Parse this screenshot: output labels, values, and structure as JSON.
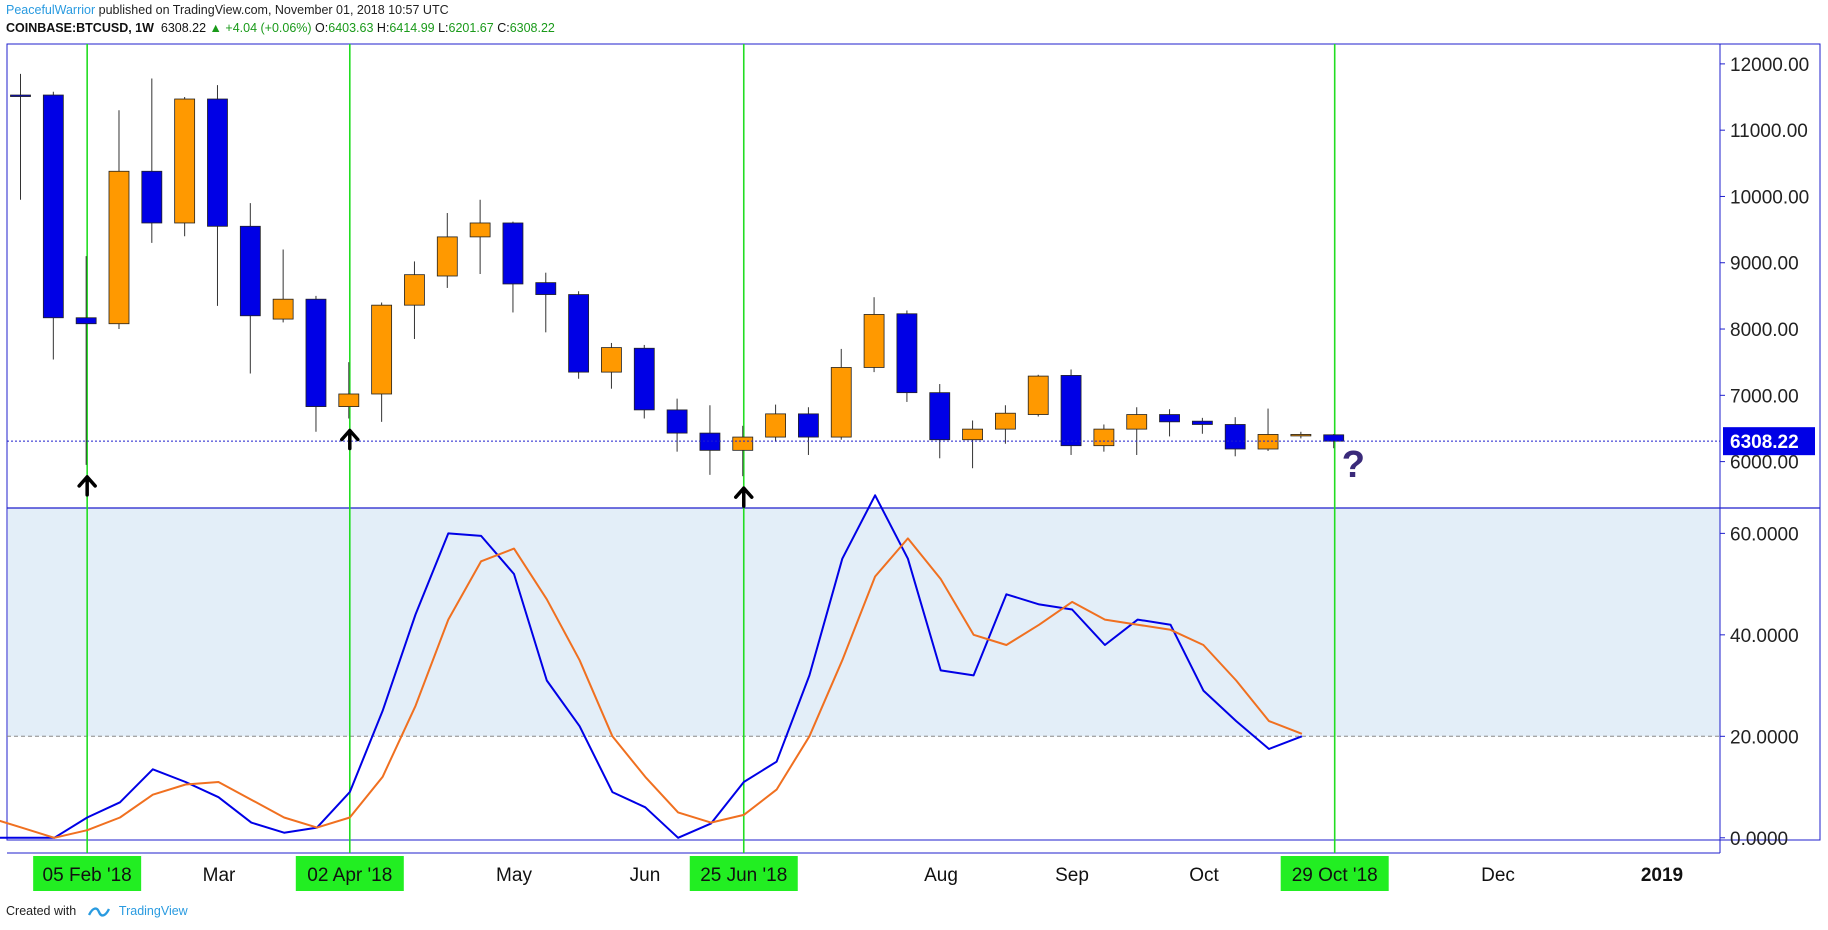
{
  "header": {
    "author": "PeacefulWarrior",
    "published": "published on TradingView.com, November 01, 2018 10:57 UTC",
    "symbol": "COINBASE:BTCUSD, 1W",
    "last": "6308.22",
    "change": "▲ +4.04 (+0.06%)",
    "open_label": "O:",
    "open": "6403.63",
    "high_label": "H:",
    "high": "6414.99",
    "low_label": "L:",
    "low": "6201.67",
    "close_label": "C:",
    "close": "6308.22"
  },
  "footer": {
    "created_with": "Created with",
    "brand": "TradingView"
  },
  "colors": {
    "frame": "#1f1fcc",
    "bull": "#ff9900",
    "bear": "#0000e6",
    "stoch_k": "#0000e6",
    "stoch_d": "#f07020",
    "band": "#e3eef8",
    "vline": "#22dd22",
    "date_label_bg": "#22ee22",
    "price_tag_bg": "#0000e6"
  },
  "chart_data": [
    {
      "type": "candlestick",
      "title": "COINBASE:BTCUSD, 1W",
      "ylim": [
        5300,
        12300
      ],
      "yticks": [
        "12000.00",
        "11000.00",
        "10000.00",
        "9000.00",
        "8000.00",
        "7000.00",
        "6000.00"
      ],
      "ytick_values": [
        12000,
        11000,
        10000,
        9000,
        8000,
        7000,
        6000
      ],
      "last_price": 6308.22,
      "last_price_label": "6308.22",
      "candles": [
        {
          "o": 11530,
          "h": 11850,
          "l": 9950,
          "c": 11520
        },
        {
          "o": 11530,
          "h": 11580,
          "l": 7540,
          "c": 8170
        },
        {
          "o": 8170,
          "h": 9100,
          "l": 5950,
          "c": 8080
        },
        {
          "o": 8080,
          "h": 11300,
          "l": 8000,
          "c": 10380
        },
        {
          "o": 10380,
          "h": 11780,
          "l": 9300,
          "c": 9600
        },
        {
          "o": 9600,
          "h": 11500,
          "l": 9400,
          "c": 11470
        },
        {
          "o": 11470,
          "h": 11680,
          "l": 8350,
          "c": 9550
        },
        {
          "o": 9550,
          "h": 9900,
          "l": 7330,
          "c": 8200
        },
        {
          "o": 8150,
          "h": 9200,
          "l": 8100,
          "c": 8450
        },
        {
          "o": 8450,
          "h": 8500,
          "l": 6450,
          "c": 6830
        },
        {
          "o": 6830,
          "h": 7500,
          "l": 6650,
          "c": 7020
        },
        {
          "o": 7020,
          "h": 8400,
          "l": 6600,
          "c": 8360
        },
        {
          "o": 8360,
          "h": 9020,
          "l": 7850,
          "c": 8820
        },
        {
          "o": 8800,
          "h": 9750,
          "l": 8620,
          "c": 9390
        },
        {
          "o": 9390,
          "h": 9950,
          "l": 8830,
          "c": 9600
        },
        {
          "o": 9600,
          "h": 9620,
          "l": 8250,
          "c": 8680
        },
        {
          "o": 8700,
          "h": 8850,
          "l": 7950,
          "c": 8520
        },
        {
          "o": 8520,
          "h": 8570,
          "l": 7250,
          "c": 7350
        },
        {
          "o": 7350,
          "h": 7790,
          "l": 7100,
          "c": 7720
        },
        {
          "o": 7710,
          "h": 7760,
          "l": 6650,
          "c": 6780
        },
        {
          "o": 6780,
          "h": 6950,
          "l": 6150,
          "c": 6430
        },
        {
          "o": 6430,
          "h": 6850,
          "l": 5800,
          "c": 6170
        },
        {
          "o": 6170,
          "h": 6540,
          "l": 5780,
          "c": 6370
        },
        {
          "o": 6370,
          "h": 6860,
          "l": 6300,
          "c": 6720
        },
        {
          "o": 6720,
          "h": 6820,
          "l": 6100,
          "c": 6370
        },
        {
          "o": 6370,
          "h": 7700,
          "l": 6330,
          "c": 7420
        },
        {
          "o": 7420,
          "h": 8480,
          "l": 7350,
          "c": 8220
        },
        {
          "o": 8230,
          "h": 8280,
          "l": 6900,
          "c": 7040
        },
        {
          "o": 7040,
          "h": 7170,
          "l": 6050,
          "c": 6330
        },
        {
          "o": 6330,
          "h": 6620,
          "l": 5900,
          "c": 6490
        },
        {
          "o": 6490,
          "h": 6850,
          "l": 6270,
          "c": 6730
        },
        {
          "o": 6710,
          "h": 7310,
          "l": 6680,
          "c": 7290
        },
        {
          "o": 7300,
          "h": 7390,
          "l": 6100,
          "c": 6240
        },
        {
          "o": 6240,
          "h": 6560,
          "l": 6150,
          "c": 6490
        },
        {
          "o": 6490,
          "h": 6820,
          "l": 6100,
          "c": 6710
        },
        {
          "o": 6710,
          "h": 6790,
          "l": 6380,
          "c": 6600
        },
        {
          "o": 6610,
          "h": 6660,
          "l": 6420,
          "c": 6560
        },
        {
          "o": 6560,
          "h": 6670,
          "l": 6080,
          "c": 6190
        },
        {
          "o": 6190,
          "h": 6800,
          "l": 6160,
          "c": 6410
        },
        {
          "o": 6400,
          "h": 6450,
          "l": 6350,
          "c": 6410
        },
        {
          "o": 6404,
          "h": 6415,
          "l": 6202,
          "c": 6308
        }
      ],
      "annotations": {
        "up_arrows_at_candle": [
          2,
          10,
          22
        ],
        "question_mark": "?"
      }
    },
    {
      "type": "line",
      "ylim": [
        -3,
        65
      ],
      "yticks": [
        "60.0000",
        "40.0000",
        "20.0000",
        "0.0000"
      ],
      "ytick_values": [
        60,
        40,
        20,
        0
      ],
      "band": [
        20,
        65
      ],
      "dashed_level": 20,
      "series": [
        {
          "values": [
            4.0,
            0.0,
            0.0,
            0.0,
            4.0,
            7.0,
            13.5,
            11.0,
            8.0,
            3.0,
            1.0,
            2.0,
            9.0,
            25.0,
            44.0,
            60.0,
            59.5,
            52.0,
            31.0,
            22.0,
            9.0,
            6.0,
            0.0,
            2.8,
            11.0,
            15.0,
            32.0,
            55.0,
            67.5,
            55.0,
            33.0,
            32.0,
            48.0,
            46.0,
            45.0,
            38.0,
            43.0,
            42.0,
            29.0,
            23.0,
            17.5,
            20.0
          ]
        },
        {
          "values": [
            8.0,
            4.0,
            2.0,
            0.0,
            1.5,
            4.0,
            8.5,
            10.5,
            11.0,
            7.5,
            4.0,
            2.0,
            4.0,
            12.0,
            26.0,
            43.0,
            54.5,
            57.0,
            47.0,
            35.0,
            20.0,
            12.0,
            5.0,
            3.0,
            4.5,
            9.5,
            20.0,
            35.0,
            51.5,
            59.0,
            51.0,
            40.0,
            38.0,
            42.0,
            46.5,
            43.0,
            42.0,
            41.0,
            38.0,
            31.0,
            23.0,
            20.5
          ]
        }
      ]
    }
  ],
  "x_axis": {
    "labels": [
      "05 Feb '18",
      "Mar",
      "02 Apr '18",
      "May",
      "Jun",
      "25 Jun '18",
      "Aug",
      "Sep",
      "Oct",
      "29 Oct '18",
      "Dec",
      "2019"
    ],
    "highlighted": [
      "05 Feb '18",
      "02 Apr '18",
      "25 Jun '18",
      "29 Oct '18"
    ]
  }
}
